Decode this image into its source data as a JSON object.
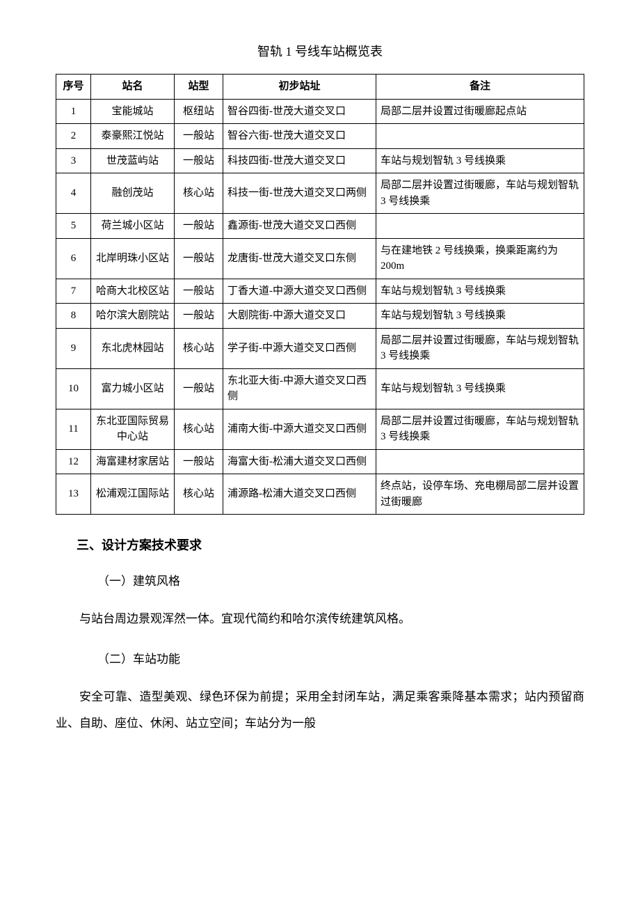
{
  "title": "智轨 1 号线车站概览表",
  "columns": [
    "序号",
    "站名",
    "站型",
    "初步站址",
    "备注"
  ],
  "rows": [
    {
      "seq": "1",
      "name": "宝能城站",
      "type": "枢纽站",
      "addr": "智谷四街-世茂大道交叉口",
      "note": "局部二层并设置过街暖廊起点站"
    },
    {
      "seq": "2",
      "name": "泰豪熙江悦站",
      "type": "一般站",
      "addr": "智谷六街-世茂大道交叉口",
      "note": ""
    },
    {
      "seq": "3",
      "name": "世茂蓝屿站",
      "type": "一般站",
      "addr": "科技四街-世茂大道交叉口",
      "note": "车站与规划智轨 3 号线换乘"
    },
    {
      "seq": "4",
      "name": "融创茂站",
      "type": "核心站",
      "addr": "科技一街-世茂大道交叉口两侧",
      "note": "局部二层并设置过街暖廊，车站与规划智轨 3 号线换乘"
    },
    {
      "seq": "5",
      "name": "荷兰城小区站",
      "type": "一般站",
      "addr": "鑫源街-世茂大道交叉口西侧",
      "note": ""
    },
    {
      "seq": "6",
      "name": "北岸明珠小区站",
      "type": "一般站",
      "addr": "龙唐街-世茂大道交叉口东侧",
      "note": "与在建地铁 2 号线换乘，换乘距离约为 200m"
    },
    {
      "seq": "7",
      "name": "哈商大北校区站",
      "type": "一般站",
      "addr": "丁香大道-中源大道交叉口西侧",
      "note": "车站与规划智轨 3 号线换乘"
    },
    {
      "seq": "8",
      "name": "哈尔滨大剧院站",
      "type": "一般站",
      "addr": "大剧院街-中源大道交叉口",
      "note": "车站与规划智轨 3 号线换乘"
    },
    {
      "seq": "9",
      "name": "东北虎林园站",
      "type": "核心站",
      "addr": "学子街-中源大道交叉口西侧",
      "note": "局部二层并设置过街暖廊，车站与规划智轨 3 号线换乘"
    },
    {
      "seq": "10",
      "name": "富力城小区站",
      "type": "一般站",
      "addr": "东北亚大街-中源大道交叉口西侧",
      "note": "车站与规划智轨 3 号线换乘"
    },
    {
      "seq": "11",
      "name": "东北亚国际贸易中心站",
      "type": "核心站",
      "addr": "浦南大街-中源大道交叉口西侧",
      "note": "局部二层并设置过街暖廊，车站与规划智轨 3 号线换乘"
    },
    {
      "seq": "12",
      "name": "海富建材家居站",
      "type": "一般站",
      "addr": "海富大街-松浦大道交叉口西侧",
      "note": ""
    },
    {
      "seq": "13",
      "name": "松浦观江国际站",
      "type": "核心站",
      "addr": "浦源路-松浦大道交叉口西侧",
      "note": "终点站，设停车场、充电棚局部二层并设置过街暖廊"
    }
  ],
  "section_heading": "三、设计方案技术要求",
  "sub1": "（一）建筑风格",
  "para1": "与站台周边景观浑然一体。宜现代简约和哈尔滨传统建筑风格。",
  "sub2": "（二）车站功能",
  "para2": "安全可靠、造型美观、绿色环保为前提；采用全封闭车站，满足乘客乘降基本需求；站内预留商业、自助、座位、休闲、站立空间；车站分为一般"
}
